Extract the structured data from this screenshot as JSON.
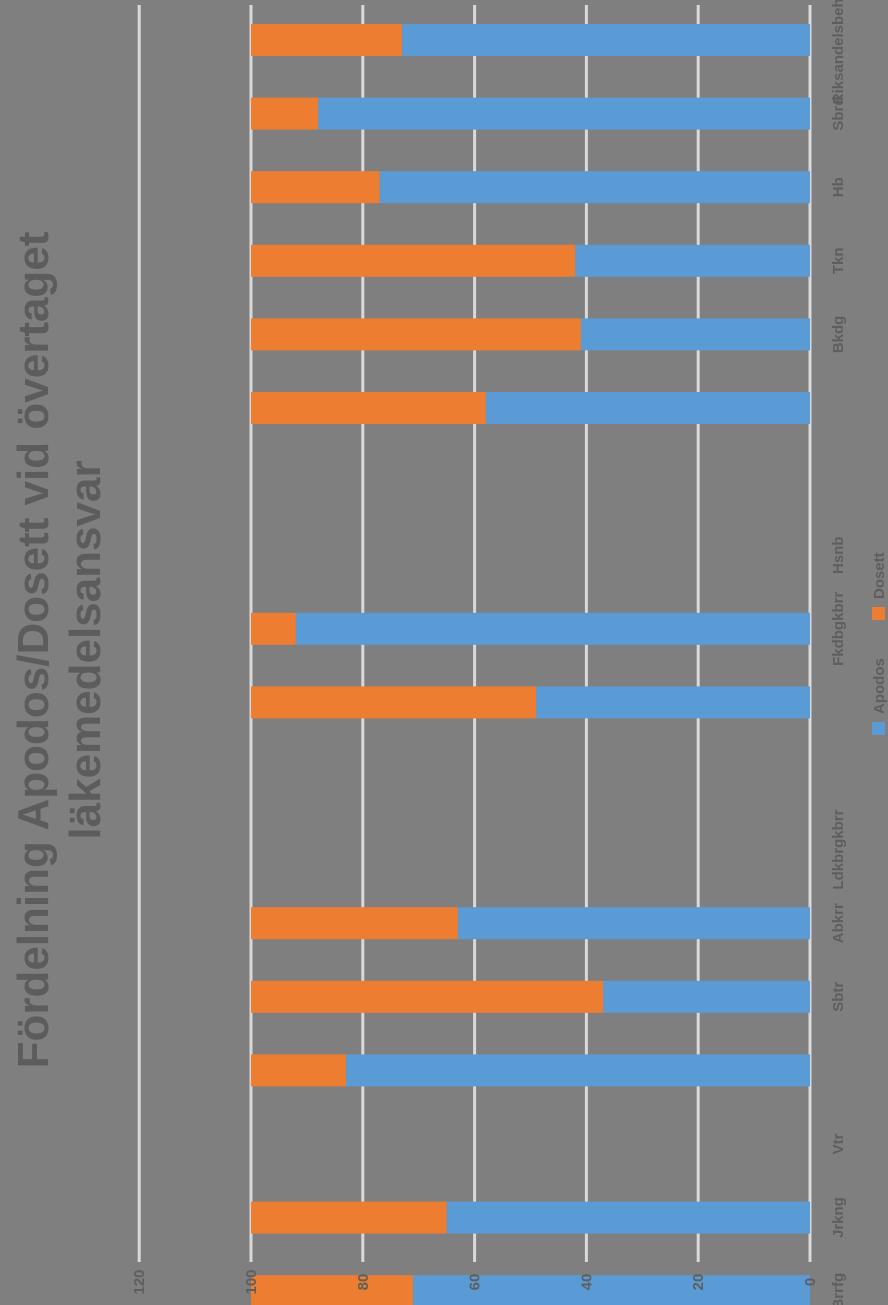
{
  "chart_data": {
    "type": "bar",
    "orientation": "horizontal-rotated",
    "stacked": true,
    "title_lines": [
      "Fördelning Apodos/Dosett vid övertaget",
      "läkemedelsansvar"
    ],
    "categories": [
      "Riksandelsbehdig",
      "Sbrd",
      "Hb",
      "Tkn",
      "Bkdg",
      "",
      "",
      "Hsnb",
      "Fkdbgkbrr",
      "",
      "",
      "Ldkbrgkbrr",
      "Abkrr",
      "Sbtr",
      "",
      "Vtr",
      "Jrkng",
      "Brrfg"
    ],
    "series": [
      {
        "name": "Apodos",
        "color": "#5b9bd5",
        "values": [
          73,
          88,
          77,
          42,
          41,
          58,
          null,
          null,
          92,
          49,
          null,
          null,
          63,
          37,
          83,
          null,
          65,
          71
        ]
      },
      {
        "name": "Dosett",
        "color": "#ed7d31",
        "values": [
          27,
          12,
          23,
          58,
          59,
          42,
          null,
          null,
          8,
          51,
          null,
          null,
          37,
          63,
          17,
          null,
          35,
          29
        ]
      }
    ],
    "xlim": [
      0,
      120
    ],
    "ticks": [
      0,
      20,
      40,
      60,
      80,
      100,
      120
    ],
    "tick_labels": [
      "0",
      "20",
      "40",
      "60",
      "80",
      "100",
      "120"
    ],
    "grid": true,
    "legend_position": "bottom"
  }
}
